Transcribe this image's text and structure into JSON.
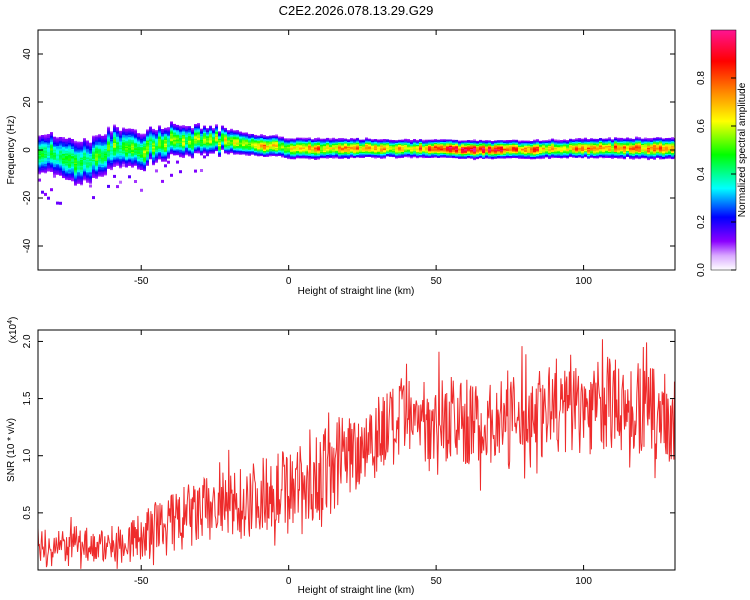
{
  "title": "C2E2.2026.078.13.29.G29",
  "chart_data": [
    {
      "type": "heatmap",
      "xlabel": "Height of straight line (km)",
      "ylabel": "Frequency (Hz)",
      "xlim": [
        -85,
        131
      ],
      "ylim": [
        -50,
        50
      ],
      "x_ticks": [
        -50,
        0,
        50,
        100
      ],
      "y_ticks": [
        -40,
        -20,
        0,
        20,
        40
      ],
      "colorbar": {
        "label": "Normalized spectral amplitude",
        "range": [
          0,
          1
        ],
        "ticks": [
          "0.0",
          "0.2",
          "0.4",
          "0.6",
          "0.8"
        ],
        "colors": [
          "#ffffff",
          "#8a00ff",
          "#0000ff",
          "#00ffff",
          "#00ff00",
          "#ffff00",
          "#ff7f00",
          "#ff0000",
          "#ff1493"
        ]
      },
      "band": {
        "center_hz": [
          [
            -85,
            0
          ],
          [
            -80,
            -2
          ],
          [
            -75,
            -4
          ],
          [
            -70,
            -5
          ],
          [
            -65,
            -3
          ],
          [
            -60,
            1
          ],
          [
            -55,
            2
          ],
          [
            -50,
            0
          ],
          [
            -45,
            3
          ],
          [
            -40,
            4
          ],
          [
            -35,
            3
          ],
          [
            -30,
            5
          ],
          [
            -25,
            4
          ],
          [
            -20,
            4
          ],
          [
            -15,
            3
          ],
          [
            -10,
            2
          ],
          [
            -5,
            2
          ],
          [
            0,
            1
          ],
          [
            10,
            1
          ],
          [
            20,
            1
          ],
          [
            40,
            1
          ],
          [
            60,
            0.5
          ],
          [
            80,
            0.5
          ],
          [
            100,
            1
          ],
          [
            120,
            1
          ],
          [
            131,
            1
          ]
        ],
        "half_width_hz": [
          [
            -85,
            6
          ],
          [
            -70,
            7
          ],
          [
            -55,
            6
          ],
          [
            -40,
            5
          ],
          [
            -25,
            4
          ],
          [
            -10,
            3
          ],
          [
            0,
            3
          ],
          [
            40,
            2.5
          ],
          [
            80,
            2.5
          ],
          [
            131,
            3
          ]
        ],
        "peak_amplitude": [
          [
            -85,
            0.45
          ],
          [
            -70,
            0.5
          ],
          [
            -55,
            0.55
          ],
          [
            -40,
            0.55
          ],
          [
            -25,
            0.6
          ],
          [
            -10,
            0.75
          ],
          [
            0,
            0.7
          ],
          [
            20,
            0.8
          ],
          [
            40,
            0.75
          ],
          [
            55,
            0.95
          ],
          [
            65,
            1.0
          ],
          [
            75,
            0.9
          ],
          [
            90,
            0.8
          ],
          [
            110,
            0.8
          ],
          [
            131,
            0.8
          ]
        ]
      }
    },
    {
      "type": "line",
      "xlabel": "Height of straight line (km)",
      "ylabel": "SNR (10 * v/v)",
      "y_multiplier": "(x10",
      "y_multiplier_exp": "4",
      "y_multiplier_close": ")",
      "xlim": [
        -85,
        131
      ],
      "ylim": [
        0,
        2.1
      ],
      "x_ticks": [
        -50,
        0,
        50,
        100
      ],
      "y_ticks": [
        0.5,
        1.0,
        1.5,
        2.0
      ],
      "color": "#ee2b2b",
      "series": [
        {
          "x": [
            -85,
            -80,
            -75,
            -70,
            -65,
            -60,
            -55,
            -50,
            -45,
            -40,
            -35,
            -30,
            -25,
            -20,
            -15,
            -10,
            -5,
            0,
            5,
            10,
            15,
            20,
            25,
            30,
            35,
            40,
            45,
            50,
            55,
            60,
            65,
            70,
            75,
            80,
            85,
            90,
            95,
            100,
            105,
            110,
            115,
            120,
            125,
            131
          ],
          "y": [
            0.2,
            0.18,
            0.22,
            0.25,
            0.2,
            0.22,
            0.25,
            0.28,
            0.35,
            0.4,
            0.45,
            0.5,
            0.55,
            0.55,
            0.6,
            0.65,
            0.7,
            0.75,
            0.7,
            0.8,
            0.9,
            1.0,
            1.1,
            1.2,
            1.25,
            1.3,
            1.3,
            1.35,
            1.3,
            1.3,
            1.25,
            1.3,
            1.3,
            1.35,
            1.4,
            1.4,
            1.4,
            1.4,
            1.45,
            1.45,
            1.4,
            1.4,
            1.35,
            1.3
          ],
          "noise_amplitude": [
            0.15,
            0.15,
            0.15,
            0.15,
            0.15,
            0.17,
            0.2,
            0.22,
            0.25,
            0.28,
            0.3,
            0.3,
            0.32,
            0.32,
            0.33,
            0.33,
            0.33,
            0.33,
            0.35,
            0.38,
            0.4,
            0.38,
            0.38,
            0.38,
            0.36,
            0.36,
            0.36,
            0.38,
            0.38,
            0.38,
            0.36,
            0.36,
            0.38,
            0.4,
            0.4,
            0.42,
            0.42,
            0.4,
            0.42,
            0.42,
            0.4,
            0.4,
            0.4,
            0.38
          ]
        }
      ]
    }
  ]
}
